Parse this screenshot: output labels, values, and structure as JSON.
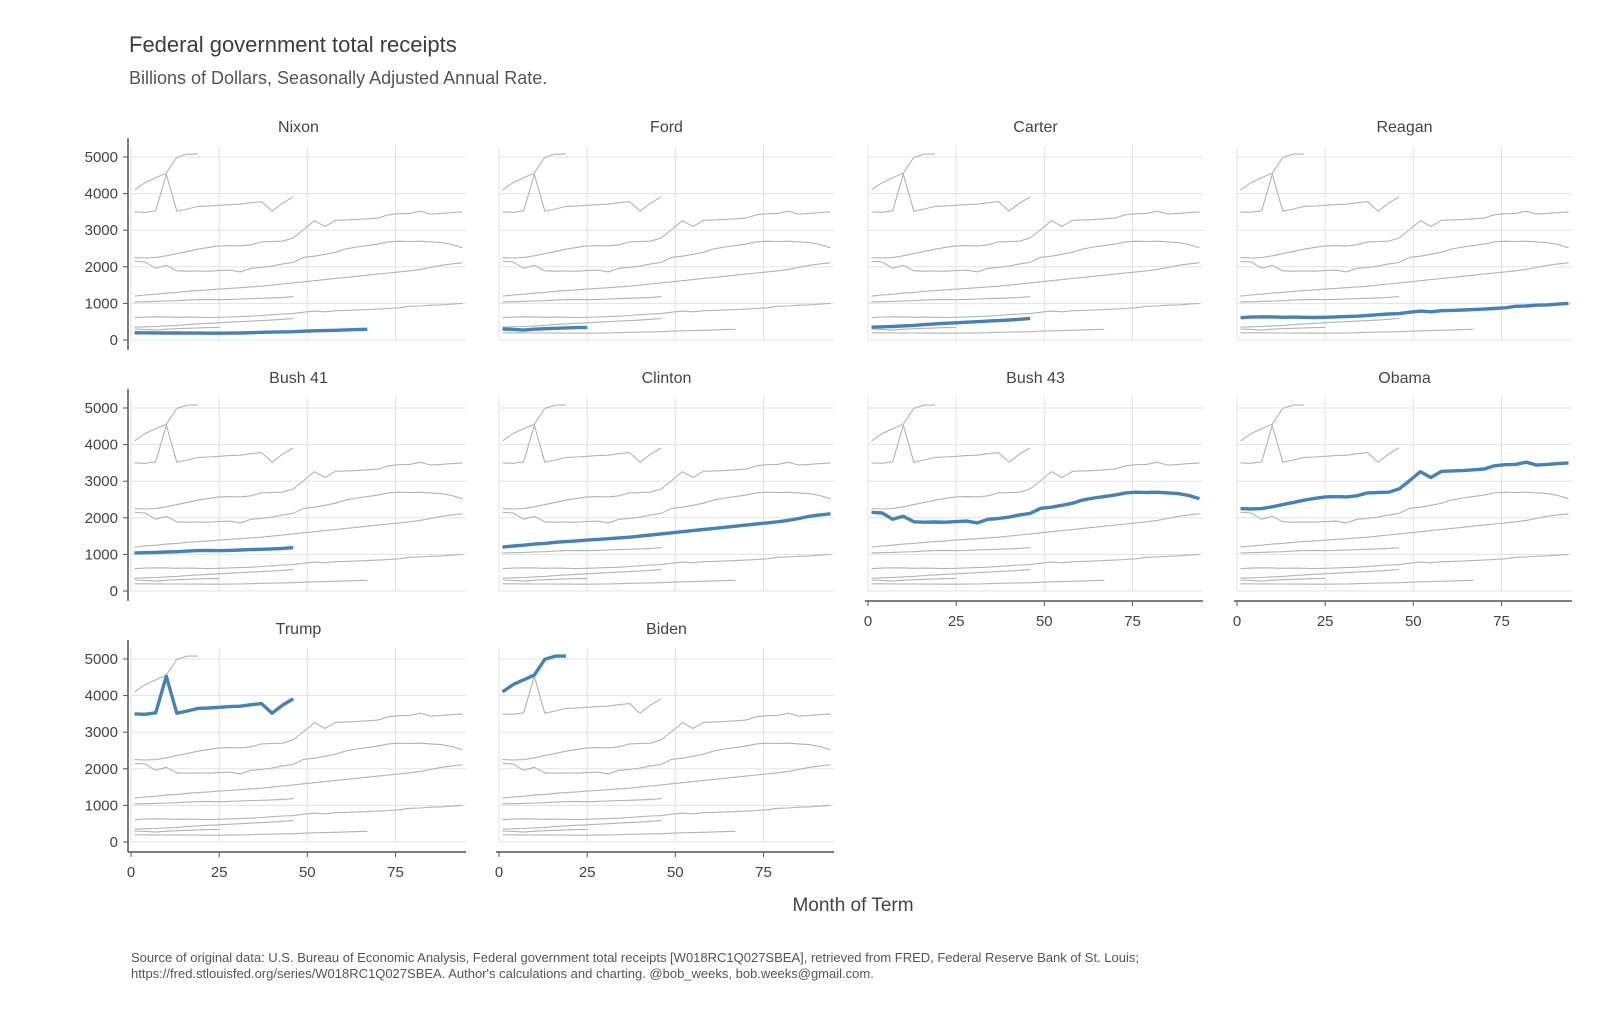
{
  "title": "Federal government total receipts",
  "subtitle": "Billions of Dollars, Seasonally Adjusted Annual Rate.",
  "source_line1": "Source of original data: U.S. Bureau of Economic Analysis, Federal government total receipts [W018RC1Q027SBEA], retrieved from FRED, Federal Reserve Bank of St. Louis;",
  "source_line2": "https://fred.stlouisfed.org/series/W018RC1Q027SBEA. Author's calculations and charting. @bob_weeks, bob.weeks@gmail.com.",
  "colors": {
    "highlight": "#4682b4",
    "background_series": "#b3b3b3",
    "grid": "#e3e3e3",
    "axis": "#555555"
  },
  "chart_data": {
    "type": "line",
    "layout": "small-multiples",
    "xlabel": "Month of Term",
    "ylabel": "",
    "xlim": [
      0,
      95
    ],
    "ylim": [
      0,
      5300
    ],
    "x_ticks": [
      0,
      25,
      50,
      75
    ],
    "y_ticks": [
      0,
      1000,
      2000,
      3000,
      4000,
      5000
    ],
    "grid": true,
    "panels": [
      "Nixon",
      "Ford",
      "Carter",
      "Reagan",
      "Bush 41",
      "Clinton",
      "Bush 43",
      "Obama",
      "Trump",
      "Biden"
    ],
    "series": [
      {
        "name": "Nixon",
        "x": [
          1,
          4,
          7,
          10,
          13,
          16,
          19,
          22,
          25,
          28,
          31,
          34,
          37,
          40,
          43,
          46,
          49,
          52,
          55,
          58,
          61,
          64,
          67
        ],
        "values": [
          198,
          196,
          194,
          192,
          190,
          189,
          188,
          187,
          186,
          188,
          190,
          200,
          210,
          215,
          220,
          228,
          240,
          250,
          258,
          265,
          275,
          285,
          292
        ]
      },
      {
        "name": "Ford",
        "x": [
          1,
          4,
          7,
          10,
          13,
          16,
          19,
          22,
          25
        ],
        "values": [
          300,
          290,
          270,
          295,
          310,
          320,
          330,
          340,
          345
        ]
      },
      {
        "name": "Carter",
        "x": [
          1,
          4,
          7,
          10,
          13,
          16,
          19,
          22,
          25,
          28,
          31,
          34,
          37,
          40,
          43,
          46
        ],
        "values": [
          350,
          360,
          370,
          385,
          400,
          420,
          440,
          455,
          470,
          485,
          500,
          515,
          530,
          545,
          565,
          590
        ]
      },
      {
        "name": "Reagan",
        "x": [
          1,
          4,
          7,
          10,
          13,
          16,
          19,
          22,
          25,
          28,
          31,
          34,
          37,
          40,
          43,
          46,
          49,
          52,
          55,
          58,
          61,
          64,
          67,
          70,
          73,
          76,
          79,
          82,
          85,
          88,
          91,
          94
        ],
        "values": [
          610,
          625,
          635,
          630,
          620,
          625,
          620,
          615,
          620,
          630,
          640,
          650,
          670,
          690,
          710,
          720,
          760,
          790,
          770,
          800,
          810,
          820,
          830,
          845,
          860,
          880,
          920,
          930,
          950,
          960,
          980,
          1000
        ]
      },
      {
        "name": "Bush 41",
        "x": [
          1,
          4,
          7,
          10,
          13,
          16,
          19,
          22,
          25,
          28,
          31,
          34,
          37,
          40,
          43,
          46
        ],
        "values": [
          1040,
          1045,
          1055,
          1065,
          1075,
          1090,
          1105,
          1110,
          1100,
          1110,
          1120,
          1130,
          1140,
          1150,
          1165,
          1185
        ]
      },
      {
        "name": "Clinton",
        "x": [
          1,
          4,
          7,
          10,
          13,
          16,
          19,
          22,
          25,
          28,
          31,
          34,
          37,
          40,
          43,
          46,
          49,
          52,
          55,
          58,
          61,
          64,
          67,
          70,
          73,
          76,
          79,
          82,
          85,
          88,
          91,
          94
        ],
        "values": [
          1200,
          1230,
          1250,
          1280,
          1300,
          1330,
          1350,
          1370,
          1390,
          1410,
          1430,
          1450,
          1470,
          1500,
          1530,
          1560,
          1590,
          1620,
          1650,
          1680,
          1710,
          1740,
          1770,
          1800,
          1830,
          1860,
          1890,
          1930,
          1980,
          2040,
          2080,
          2110
        ]
      },
      {
        "name": "Bush 43",
        "x": [
          1,
          4,
          7,
          10,
          13,
          16,
          19,
          22,
          25,
          28,
          31,
          34,
          37,
          40,
          43,
          46,
          49,
          52,
          55,
          58,
          61,
          64,
          67,
          70,
          73,
          76,
          79,
          82,
          85,
          88,
          91,
          94
        ],
        "values": [
          2150,
          2130,
          1960,
          2040,
          1890,
          1880,
          1885,
          1880,
          1895,
          1910,
          1860,
          1960,
          1980,
          2020,
          2080,
          2120,
          2260,
          2290,
          2340,
          2400,
          2490,
          2540,
          2580,
          2620,
          2680,
          2700,
          2690,
          2700,
          2680,
          2660,
          2610,
          2520
        ]
      },
      {
        "name": "Obama",
        "x": [
          1,
          4,
          7,
          10,
          13,
          16,
          19,
          22,
          25,
          28,
          31,
          34,
          37,
          40,
          43,
          46,
          49,
          52,
          55,
          58,
          61,
          64,
          67,
          70,
          73,
          76,
          79,
          82,
          85,
          88,
          91,
          94
        ],
        "values": [
          2250,
          2240,
          2250,
          2300,
          2360,
          2420,
          2480,
          2530,
          2570,
          2580,
          2570,
          2600,
          2680,
          2690,
          2700,
          2790,
          3020,
          3260,
          3100,
          3270,
          3280,
          3290,
          3310,
          3330,
          3420,
          3450,
          3460,
          3520,
          3440,
          3460,
          3480,
          3500
        ]
      },
      {
        "name": "Trump",
        "x": [
          1,
          4,
          7,
          10,
          13,
          16,
          19,
          22,
          25,
          28,
          31,
          34,
          37,
          40,
          43,
          46
        ],
        "values": [
          3500,
          3490,
          3530,
          4530,
          3520,
          3580,
          3650,
          3660,
          3680,
          3700,
          3710,
          3750,
          3780,
          3520,
          3740,
          3910
        ]
      },
      {
        "name": "Biden",
        "x": [
          1,
          4,
          7,
          10,
          13,
          16,
          19
        ],
        "values": [
          4100,
          4300,
          4430,
          4560,
          4990,
          5080,
          5080
        ]
      }
    ]
  }
}
